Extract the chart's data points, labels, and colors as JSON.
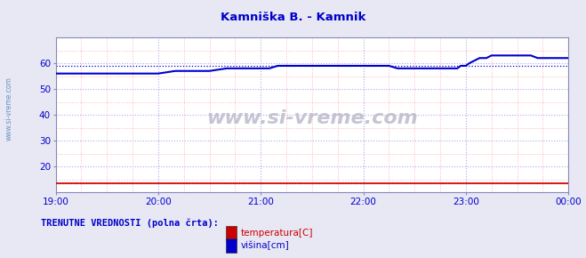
{
  "title": "Kamniška B. - Kamnik",
  "title_color": "#0000cc",
  "bg_color": "#e8e8f4",
  "plot_bg_color": "#ffffff",
  "grid_major_color": "#aaaaee",
  "grid_minor_color": "#ffaaaa",
  "ylabel_color": "#0000cc",
  "xlabel_color": "#0000cc",
  "watermark_text": "www.si-vreme.com",
  "watermark_color": "#bbbbcc",
  "sidebar_text": "www.si-vreme.com",
  "sidebar_color": "#5588bb",
  "legend_label": "TRENUTNE VREDNOSTI (polna črta):",
  "legend_label_color": "#0000cc",
  "ylim": [
    10,
    70
  ],
  "yticks": [
    20,
    30,
    40,
    50,
    60
  ],
  "xlim": [
    0,
    300
  ],
  "xtick_labels": [
    "19:00",
    "20:00",
    "21:00",
    "22:00",
    "23:00",
    "00:00"
  ],
  "xtick_positions": [
    0,
    60,
    120,
    180,
    240,
    300
  ],
  "temp_color": "#cc0000",
  "height_color": "#0000cc",
  "temp_avg_value": 13.5,
  "height_avg_value": 59.0,
  "height_data_x": [
    0,
    10,
    20,
    30,
    40,
    50,
    60,
    70,
    80,
    90,
    100,
    110,
    120,
    125,
    130,
    140,
    150,
    160,
    170,
    180,
    185,
    190,
    195,
    200,
    210,
    215,
    220,
    225,
    230,
    235,
    237,
    240,
    242,
    245,
    248,
    252,
    255,
    258,
    260,
    265,
    270,
    275,
    278,
    282,
    285,
    290,
    295,
    300
  ],
  "height_data_y": [
    56,
    56,
    56,
    56,
    56,
    56,
    56,
    57,
    57,
    57,
    58,
    58,
    58,
    58,
    59,
    59,
    59,
    59,
    59,
    59,
    59,
    59,
    59,
    58,
    58,
    58,
    58,
    58,
    58,
    58,
    59,
    59,
    60,
    61,
    62,
    62,
    63,
    63,
    63,
    63,
    63,
    63,
    63,
    62,
    62,
    62,
    62,
    62
  ],
  "temp_data_x": [
    0,
    120,
    121,
    178,
    179,
    233,
    234,
    300
  ],
  "temp_data_y": [
    13.5,
    13.5,
    13.5,
    13.5,
    13.5,
    13.5,
    13.5,
    13.5
  ],
  "minor_y": [
    15,
    25,
    35,
    45,
    55,
    65
  ],
  "minor_x": [
    15,
    30,
    45,
    75,
    90,
    105,
    135,
    150,
    165,
    195,
    210,
    225,
    255,
    270,
    285
  ]
}
